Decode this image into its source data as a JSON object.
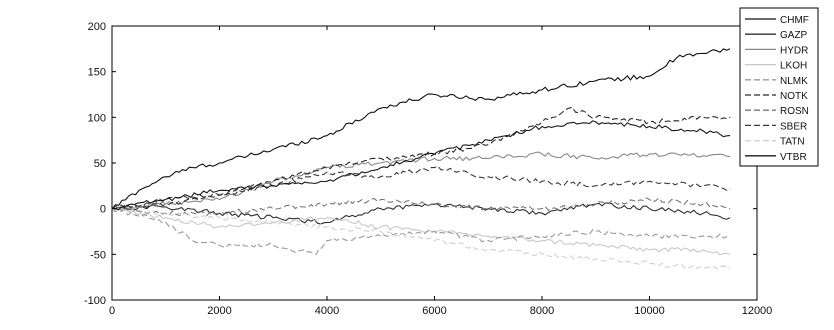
{
  "chart_data": {
    "type": "line",
    "title": "",
    "xlabel": "",
    "ylabel": "",
    "xlim": [
      0,
      12000
    ],
    "ylim": [
      -100,
      200
    ],
    "xticks": [
      0,
      2000,
      4000,
      6000,
      8000,
      10000,
      12000
    ],
    "yticks": [
      -100,
      -50,
      0,
      50,
      100,
      150,
      200
    ],
    "grid": false,
    "legend_position": "top-right",
    "series": [
      {
        "name": "CHMF",
        "color": "#111111",
        "dash": "solid",
        "x": [
          0,
          500,
          1000,
          1500,
          2000,
          3000,
          4000,
          5000,
          6000,
          7000,
          8000,
          9000,
          10000,
          10500,
          11000,
          11500
        ],
        "y": [
          0,
          20,
          35,
          45,
          50,
          65,
          80,
          110,
          125,
          120,
          130,
          140,
          145,
          165,
          170,
          175
        ]
      },
      {
        "name": "GAZP",
        "color": "#303030",
        "dash": "solid",
        "x": [
          0,
          1000,
          2000,
          3000,
          4000,
          5000,
          6000,
          7000,
          8000,
          9000,
          10000,
          11000,
          11500
        ],
        "y": [
          0,
          2,
          -5,
          -10,
          -15,
          0,
          5,
          0,
          -5,
          5,
          0,
          -5,
          -10
        ]
      },
      {
        "name": "HYDR",
        "color": "#8a8a8a",
        "dash": "solid",
        "x": [
          0,
          1000,
          2000,
          3000,
          4000,
          5000,
          6000,
          7000,
          8000,
          9000,
          10000,
          11000,
          11500
        ],
        "y": [
          0,
          5,
          10,
          30,
          45,
          50,
          55,
          55,
          60,
          55,
          60,
          58,
          57
        ]
      },
      {
        "name": "LKOH",
        "color": "#c8c8c8",
        "dash": "solid",
        "x": [
          0,
          1000,
          2000,
          3000,
          4000,
          5000,
          6000,
          7000,
          8000,
          9000,
          10000,
          11000,
          11500
        ],
        "y": [
          0,
          -10,
          -20,
          -15,
          -10,
          -20,
          -25,
          -30,
          -35,
          -40,
          -45,
          -45,
          -50
        ]
      },
      {
        "name": "NLMK",
        "color": "#9a9a9a",
        "dash": "6,3",
        "x": [
          0,
          1000,
          1500,
          2000,
          3000,
          3800,
          4000,
          5000,
          6000,
          7000,
          8000,
          9000,
          10000,
          11000,
          11500
        ],
        "y": [
          0,
          -15,
          -35,
          -40,
          -40,
          -50,
          -35,
          -30,
          -25,
          -35,
          -30,
          -25,
          -30,
          -30,
          -30
        ]
      },
      {
        "name": "NOTK",
        "color": "#2a2a2a",
        "dash": "6,3",
        "x": [
          0,
          1000,
          2000,
          3000,
          4000,
          5000,
          6000,
          7000,
          8000,
          8500,
          9000,
          10000,
          11000,
          11500
        ],
        "y": [
          0,
          5,
          15,
          30,
          45,
          55,
          60,
          70,
          95,
          110,
          100,
          95,
          100,
          100
        ]
      },
      {
        "name": "ROSN",
        "color": "#777777",
        "dash": "6,3",
        "x": [
          0,
          1000,
          2000,
          3000,
          4000,
          5000,
          6000,
          7000,
          8000,
          9000,
          10000,
          11000,
          11500
        ],
        "y": [
          0,
          -5,
          -5,
          0,
          5,
          10,
          5,
          0,
          0,
          5,
          10,
          5,
          0
        ]
      },
      {
        "name": "SBER",
        "color": "#3a3a3a",
        "dash": "6,3",
        "x": [
          0,
          1000,
          2000,
          3000,
          4000,
          5000,
          6000,
          7000,
          8000,
          9000,
          10000,
          11000,
          11500
        ],
        "y": [
          0,
          10,
          15,
          25,
          40,
          35,
          45,
          35,
          30,
          25,
          30,
          25,
          22
        ]
      },
      {
        "name": "TATN",
        "color": "#d0d0d0",
        "dash": "6,3",
        "x": [
          0,
          1000,
          2000,
          3000,
          4000,
          5000,
          6000,
          7000,
          8000,
          9000,
          10000,
          11000,
          11500
        ],
        "y": [
          0,
          -5,
          -10,
          -15,
          -20,
          -25,
          -35,
          -45,
          -50,
          -55,
          -60,
          -65,
          -65
        ]
      },
      {
        "name": "VTBR",
        "color": "#1a1a1a",
        "dash": "solid",
        "x": [
          0,
          1000,
          2000,
          3000,
          4000,
          5000,
          6000,
          7000,
          8000,
          9000,
          10000,
          11000,
          11500
        ],
        "y": [
          0,
          10,
          20,
          25,
          30,
          45,
          60,
          75,
          90,
          95,
          90,
          85,
          80
        ]
      }
    ]
  }
}
